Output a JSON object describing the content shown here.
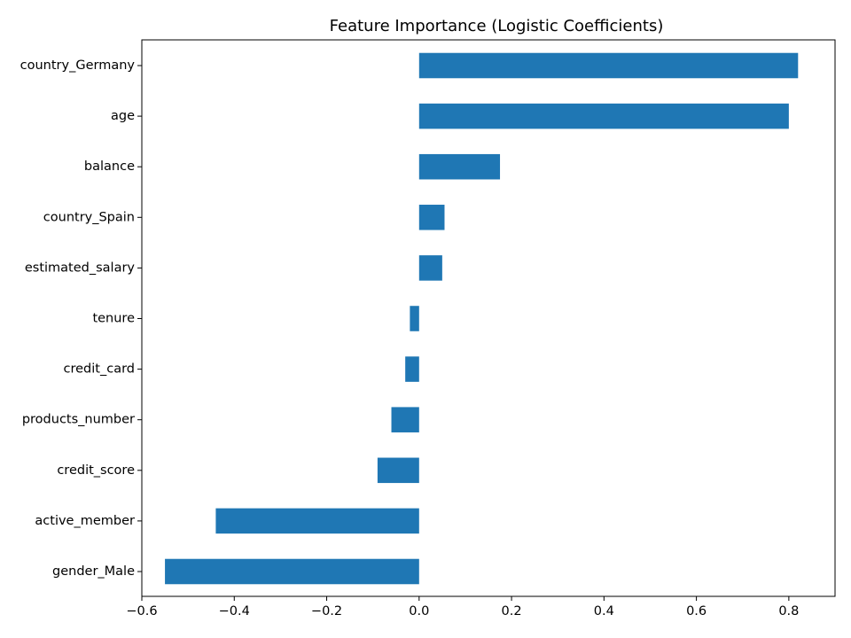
{
  "chart_data": {
    "type": "bar",
    "orientation": "horizontal",
    "title": "Feature Importance (Logistic Coefficients)",
    "xlabel": "",
    "ylabel": "",
    "categories": [
      "country_Germany",
      "age",
      "balance",
      "country_Spain",
      "estimated_salary",
      "tenure",
      "credit_card",
      "products_number",
      "credit_score",
      "active_member",
      "gender_Male"
    ],
    "values": [
      0.82,
      0.8,
      0.175,
      0.055,
      0.05,
      -0.02,
      -0.03,
      -0.06,
      -0.09,
      -0.44,
      -0.55
    ],
    "xlim": [
      -0.6,
      0.9
    ],
    "xticks": [
      -0.6,
      -0.4,
      -0.2,
      0.0,
      0.2,
      0.4,
      0.6,
      0.8
    ],
    "xtick_labels": [
      "−0.6",
      "−0.4",
      "−0.2",
      "0.0",
      "0.2",
      "0.4",
      "0.6",
      "0.8"
    ],
    "bar_color": "#1f77b4",
    "grid": false,
    "legend": "none"
  }
}
